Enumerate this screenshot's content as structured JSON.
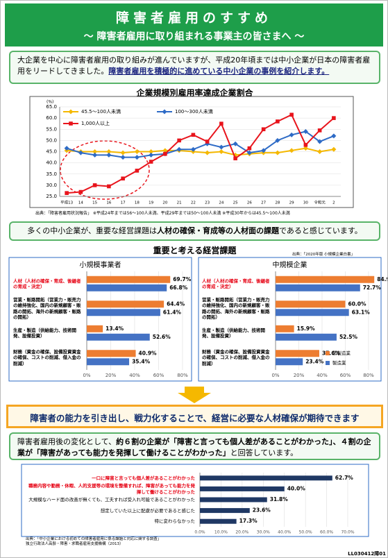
{
  "header": {
    "title": "障害者雇用のすすめ",
    "subtitle": "～ 障害者雇用に取り組まれる事業主の皆さまへ ～"
  },
  "intro": {
    "text": "大企業を中心に障害者雇用の取り組みが進んでいますが、平成20年頃までは中小企業が日本の障害者雇用をリードしてきました。",
    "emphasis": "障害者雇用を積極的に進めている中小企業の事例を紹介します。"
  },
  "chart_data": [
    {
      "type": "line",
      "title": "企業規模別雇用率達成企業割合",
      "y_label": "(%)",
      "categories": [
        "平成13",
        "14",
        "15",
        "16",
        "17",
        "18",
        "19",
        "20",
        "21",
        "22",
        "23",
        "24",
        "25",
        "26",
        "27",
        "28",
        "29",
        "30",
        "令和元",
        "2"
      ],
      "series": [
        {
          "name": "45.5～100人未満",
          "color": "#f5b800",
          "marker": "diamond",
          "values": [
            45.5,
            45,
            45,
            45,
            44.5,
            45,
            45,
            45.5,
            45.5,
            45,
            44.5,
            45,
            43.5,
            44,
            44.5,
            44.5,
            45.5,
            46.5,
            45,
            46
          ]
        },
        {
          "name": "100～300人未満",
          "color": "#2e6bc6",
          "marker": "diamond",
          "values": [
            46.5,
            44.5,
            43.5,
            43.5,
            42.5,
            42.5,
            43.5,
            44,
            46,
            46,
            48.5,
            47,
            48.5,
            44.5,
            45.5,
            50,
            52.5,
            54,
            49.5,
            52
          ]
        },
        {
          "name": "1,000人以上",
          "color": "#e8141c",
          "marker": "square",
          "values": [
            26.5,
            27,
            30,
            29.5,
            33,
            36.5,
            40.5,
            44,
            50,
            52.5,
            49.5,
            57.5,
            42,
            46.5,
            55,
            58.5,
            61.5,
            48,
            54.5,
            60
          ]
        }
      ],
      "ylim": [
        25,
        65
      ],
      "yticks": [
        {
          "value": 25,
          "label": "25.0"
        },
        {
          "value": 30,
          "label": "30.0"
        },
        {
          "value": 35,
          "label": "35.0"
        },
        {
          "value": 40,
          "label": "40.0"
        },
        {
          "value": 45,
          "label": "45.0"
        },
        {
          "value": 50,
          "label": "50.0"
        },
        {
          "value": 55,
          "label": "55.0"
        },
        {
          "value": 60,
          "label": "60.0"
        },
        {
          "value": 65,
          "label": "65.0"
        }
      ],
      "grid": true,
      "note": "出典：「障害者雇用状況報告」 ※平成24年までは56～100人未満、平成29年までは50～100人未満 ※平成30年からは45.5～100人未満"
    },
    {
      "type": "hbar",
      "title": "小規模事業者",
      "categories": [
        "人材（人材の確保・育成、後継者の育成・決定）",
        "営業・販路開拓（営業力・販売力の維持強化、国内の新規顧客・販路の開拓、海外の新規顧客・販路の開拓）",
        "生産・製造（供給能力、技術開発、設備投資）",
        "財務（資金の確保、設備投資資金の確保、コストの削減、借入金の削減）"
      ],
      "label_colors": [
        "#e60012",
        "#000000",
        "#000000",
        "#000000"
      ],
      "series": [
        {
          "color": "#ed7d31",
          "values": [
            69.7,
            64.4,
            13.4,
            40.9
          ],
          "value_labels": [
            "69.7%",
            "64.4%",
            "13.4%",
            "40.9%"
          ]
        },
        {
          "color": "#4472c4",
          "values": [
            66.8,
            61.4,
            52.6,
            35.4
          ],
          "value_labels": [
            "66.8%",
            "61.4%",
            "52.6%",
            "35.4%"
          ]
        }
      ],
      "xlim": [
        0,
        80
      ],
      "xticks": [
        {
          "value": 0,
          "label": "0%"
        },
        {
          "value": 20,
          "label": "20%"
        },
        {
          "value": 40,
          "label": "40%"
        },
        {
          "value": 60,
          "label": "60%"
        },
        {
          "value": 80,
          "label": "80%"
        }
      ]
    },
    {
      "type": "hbar",
      "title": "中規模企業",
      "categories": [
        "人材（人材の確保・育成、後継者の育成・決定）",
        "営業・販路開拓（営業力・販売力の維持強化、国内の新規顧客・販路の開拓、海外の新規顧客・販路の開拓）",
        "生産・製造（供給能力、技術開発、設備投資）",
        "財務（資金の確保、設備投資資金の確保、コストの削減、借入金の削減）"
      ],
      "label_colors": [
        "#e60012",
        "#000000",
        "#000000",
        "#000000"
      ],
      "series": [
        {
          "name": "非製造業",
          "color": "#ed7d31",
          "values": [
            84.9,
            60.0,
            15.9,
            37.6
          ],
          "value_labels": [
            "84.9%",
            "60.0%",
            "15.9%",
            "37.6%"
          ]
        },
        {
          "name": "製造業",
          "color": "#4472c4",
          "values": [
            72.7,
            63.1,
            52.5,
            23.4
          ],
          "value_labels": [
            "72.7%",
            "63.1%",
            "52.5%",
            "23.4%"
          ]
        }
      ],
      "legend": "lower right",
      "xlim": [
        0,
        80
      ],
      "xticks": [
        {
          "value": 0,
          "label": "0%"
        },
        {
          "value": 20,
          "label": "20%"
        },
        {
          "value": 40,
          "label": "40%"
        },
        {
          "value": 60,
          "label": "60%"
        },
        {
          "value": 80,
          "label": "80%"
        }
      ]
    },
    {
      "type": "hbar",
      "categories": [
        "一口に障害と言っても個人差があることがわかった",
        "職務内容や勤務・休暇、人的支援等の環境を整備すれば、障害があっても能力を発揮して働けることがわかった",
        "大規模なハード面の改善が無くても、工夫すれば受入れ可能であることがわかった",
        "想定していた以上に配慮が必要であると感じた",
        "特に変わらなかった"
      ],
      "label_colors": [
        "#e60012",
        "#e60012",
        "#000000",
        "#000000",
        "#000000"
      ],
      "series": [
        {
          "color": "#1f3864",
          "values": [
            62.7,
            40.0,
            31.8,
            23.6,
            17.3
          ],
          "value_labels": [
            "62.7%",
            "40.0%",
            "31.8%",
            "23.6%",
            "17.3%"
          ]
        }
      ],
      "xlim": [
        0,
        70
      ],
      "xticks": [
        {
          "value": 0,
          "label": "0.0%"
        },
        {
          "value": 10,
          "label": "10.0%"
        },
        {
          "value": 20,
          "label": "20.0%"
        },
        {
          "value": 30,
          "label": "30.0%"
        },
        {
          "value": 40,
          "label": "40.0%"
        },
        {
          "value": 50,
          "label": "50.0%"
        },
        {
          "value": 60,
          "label": "60.0%"
        },
        {
          "value": 70,
          "label": "70.0%"
        }
      ],
      "source": [
        "出典：「中小企業における初めての障害者雇用に係る課題と対応に関する調査」",
        "独立行政法人高齢・障害・求職者雇用支援機構（2013）"
      ]
    }
  ],
  "point1": {
    "parts": [
      "多くの中小企業が、重要な経営課題は",
      "人材の確保・育成等の人材面の課題",
      "であると感じています。"
    ]
  },
  "section2": {
    "title": "重要と考える経営課題",
    "source": "出典：「2020年版 小規模企業白書」"
  },
  "headline": "障害者の能力を引き出し、戦力化することで、経営に必要な人材確保が期待できます",
  "point2": {
    "parts": [
      "障害者雇用後の変化として、",
      "約６割の企業が「障害と言っても個人差があることがわかった」、４割の企業が「障害があっても能力を発揮して働けることがわかった」",
      "と回答しています。"
    ]
  },
  "footer_code": "LL030412障01"
}
